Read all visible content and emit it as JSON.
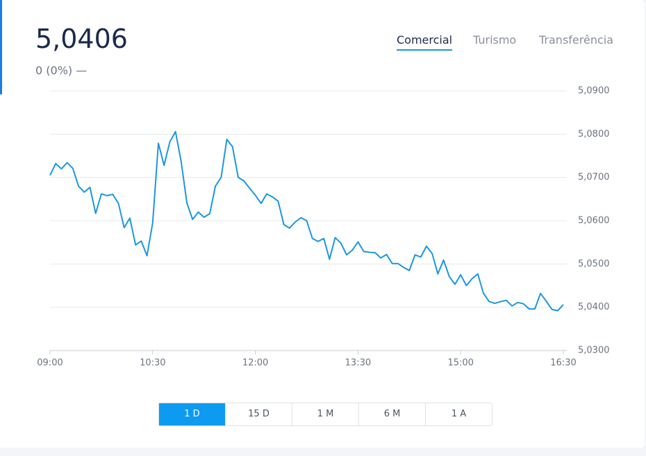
{
  "header": {
    "price": "5,0406",
    "change": "0 (0%)",
    "trend": "—"
  },
  "tabs": [
    "Comercial",
    "Turismo",
    "Transferência"
  ],
  "ranges": [
    "1 D",
    "15 D",
    "1 M",
    "6 M",
    "1 A"
  ],
  "chart_data": {
    "type": "line",
    "color": "#1a97e0",
    "grid": true,
    "x": [
      "09:00",
      "09:05",
      "09:10",
      "09:15",
      "09:20",
      "09:25",
      "09:30",
      "09:35",
      "09:40",
      "09:45",
      "09:50",
      "09:55",
      "10:00",
      "10:05",
      "10:10",
      "10:15",
      "10:20",
      "10:25",
      "10:30",
      "10:35",
      "10:40",
      "10:45",
      "10:50",
      "10:55",
      "11:00",
      "11:05",
      "11:10",
      "11:15",
      "11:20",
      "11:25",
      "11:30",
      "11:35",
      "11:40",
      "11:45",
      "11:50",
      "11:55",
      "12:00",
      "12:05",
      "12:10",
      "12:15",
      "12:20",
      "12:25",
      "12:30",
      "12:35",
      "12:40",
      "12:45",
      "12:50",
      "12:55",
      "13:00",
      "13:05",
      "13:10",
      "13:15",
      "13:20",
      "13:25",
      "13:30",
      "13:35",
      "13:40",
      "13:45",
      "13:50",
      "13:55",
      "14:00",
      "14:05",
      "14:10",
      "14:15",
      "14:20",
      "14:25",
      "14:30",
      "14:35",
      "14:40",
      "14:45",
      "14:50",
      "14:55",
      "15:00",
      "15:05",
      "15:10",
      "15:15",
      "15:20",
      "15:25",
      "15:30",
      "15:35",
      "15:40",
      "15:45",
      "15:50",
      "15:55",
      "16:00",
      "16:05",
      "16:10",
      "16:15",
      "16:20",
      "16:25",
      "16:30"
    ],
    "series": [
      {
        "values": [
          5.0705,
          5.0732,
          5.072,
          5.0734,
          5.0721,
          5.068,
          5.0666,
          5.0677,
          5.0617,
          5.0662,
          5.0658,
          5.0661,
          5.064,
          5.0584,
          5.0606,
          5.0544,
          5.0553,
          5.0519,
          5.0595,
          5.0779,
          5.0728,
          5.0782,
          5.0806,
          5.0736,
          5.0641,
          5.0603,
          5.062,
          5.0608,
          5.0616,
          5.068,
          5.07,
          5.0788,
          5.0771,
          5.07,
          5.0692,
          5.0675,
          5.0659,
          5.064,
          5.0662,
          5.0655,
          5.0645,
          5.0591,
          5.0583,
          5.0597,
          5.0607,
          5.06,
          5.0559,
          5.0552,
          5.0559,
          5.0511,
          5.0561,
          5.0548,
          5.0521,
          5.0532,
          5.0551,
          5.0529,
          5.0527,
          5.0526,
          5.0514,
          5.0522,
          5.0501,
          5.0501,
          5.0492,
          5.0485,
          5.0521,
          5.0516,
          5.0541,
          5.0524,
          5.0477,
          5.0509,
          5.0471,
          5.0453,
          5.0475,
          5.045,
          5.0466,
          5.0477,
          5.0432,
          5.0413,
          5.0409,
          5.0413,
          5.0416,
          5.0403,
          5.0411,
          5.0408,
          5.0396,
          5.0396,
          5.0432,
          5.0414,
          5.0395,
          5.0392,
          5.0406
        ]
      }
    ],
    "xlim": [
      "09:00",
      "16:30"
    ],
    "xticks": [
      "09:00",
      "10:30",
      "12:00",
      "13:30",
      "15:00",
      "16:30"
    ],
    "ylim": [
      5.03,
      5.09
    ],
    "yticks": [
      {
        "value": 5.03,
        "label": "5,0300"
      },
      {
        "value": 5.04,
        "label": "5,0400"
      },
      {
        "value": 5.05,
        "label": "5,0500"
      },
      {
        "value": 5.06,
        "label": "5,0600"
      },
      {
        "value": 5.07,
        "label": "5,0700"
      },
      {
        "value": 5.08,
        "label": "5,0800"
      },
      {
        "value": 5.09,
        "label": "5,0900"
      }
    ]
  }
}
